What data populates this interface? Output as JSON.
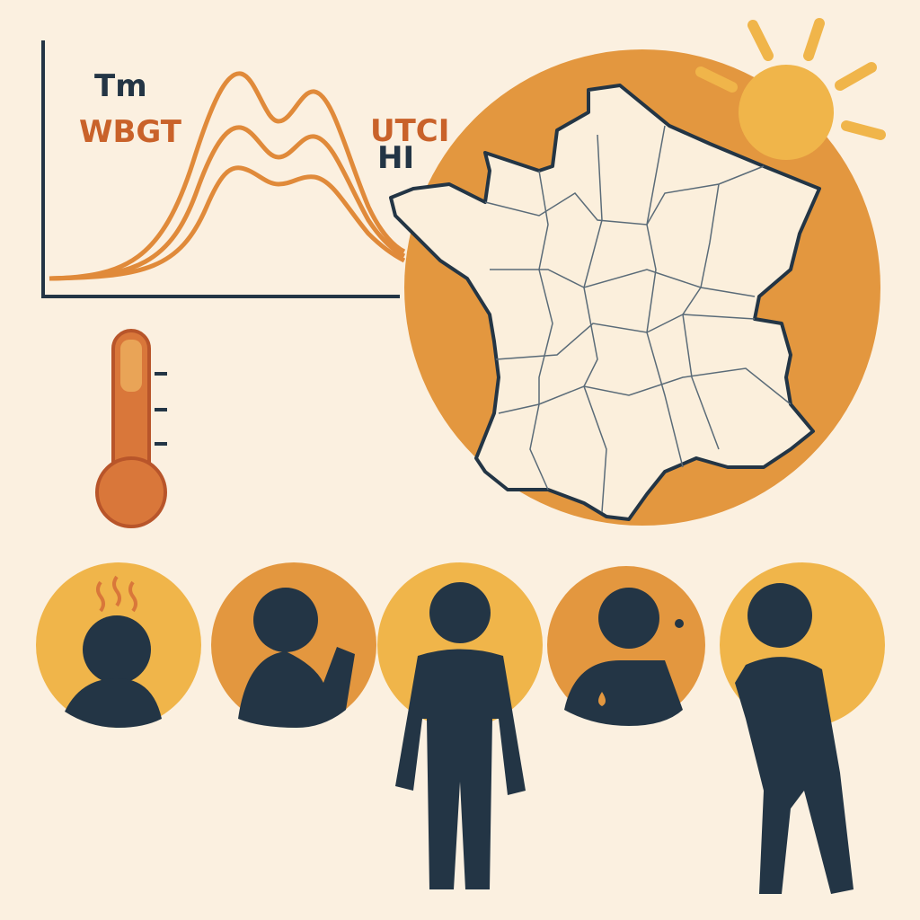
{
  "chart": {
    "labels": {
      "tm": "Tm",
      "wbgt": "WBGT",
      "utci": "UTCI",
      "hi": "HI"
    }
  },
  "colors": {
    "background": "#fbf0e0",
    "orange": "#e3973f",
    "yellow": "#f0b54a",
    "dark": "#233545",
    "curve": "#e08a3a",
    "thermometer": "#d9773a",
    "map_fill": "#fbefdc"
  },
  "icons": [
    "line-chart",
    "thermometer",
    "sun",
    "france-map",
    "heat-headache",
    "drinking-water",
    "muscle-cramp",
    "sweating",
    "dizziness"
  ]
}
